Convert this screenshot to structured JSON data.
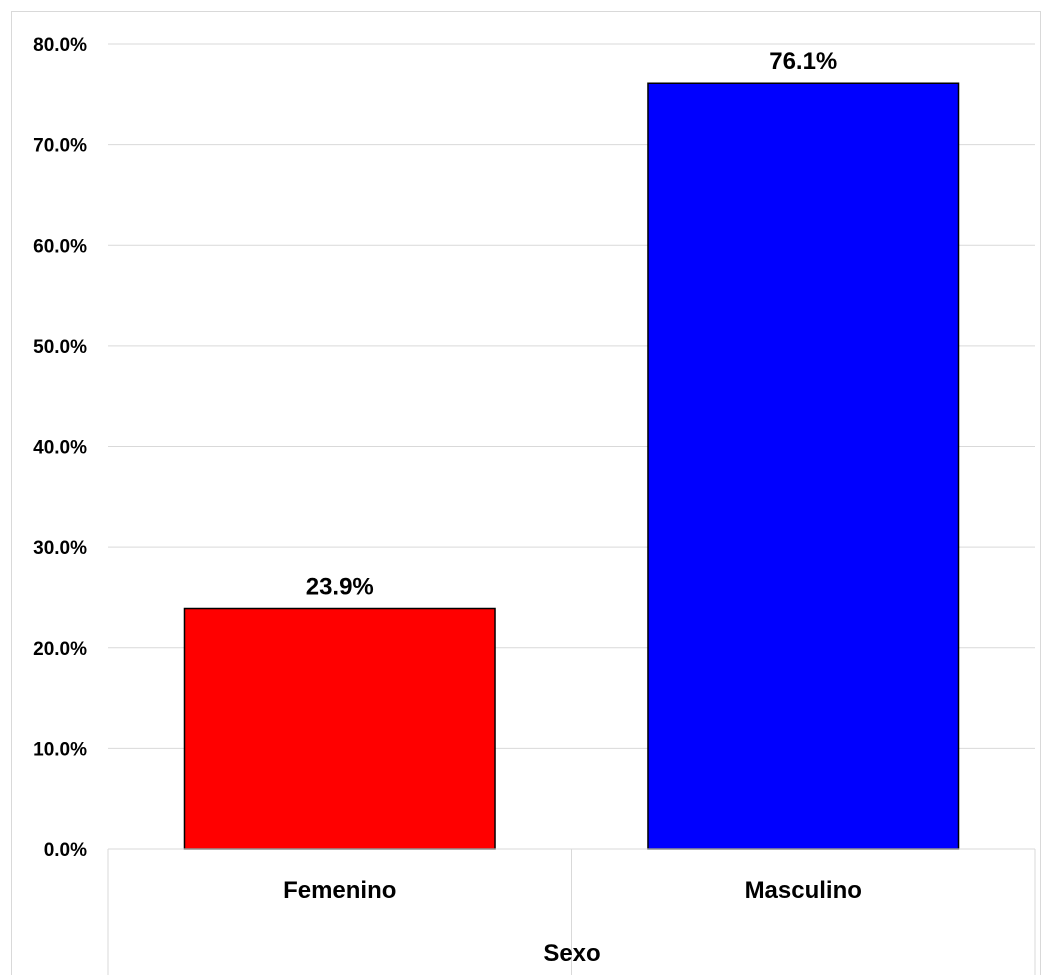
{
  "chart_data": {
    "type": "bar",
    "categories": [
      "Femenino",
      "Masculino"
    ],
    "values": [
      23.9,
      76.1
    ],
    "data_labels": [
      "23.9%",
      "76.1%"
    ],
    "colors": [
      "#ff0000",
      "#0000ff"
    ],
    "xlabel": "Sexo",
    "ylabel": "",
    "ylim": [
      0,
      80
    ],
    "yticks": [
      0,
      10,
      20,
      30,
      40,
      50,
      60,
      70,
      80
    ],
    "ytick_labels": [
      "0.0%",
      "10.0%",
      "20.0%",
      "30.0%",
      "40.0%",
      "50.0%",
      "60.0%",
      "70.0%",
      "80.0%"
    ],
    "grid": true,
    "legend": "none"
  }
}
